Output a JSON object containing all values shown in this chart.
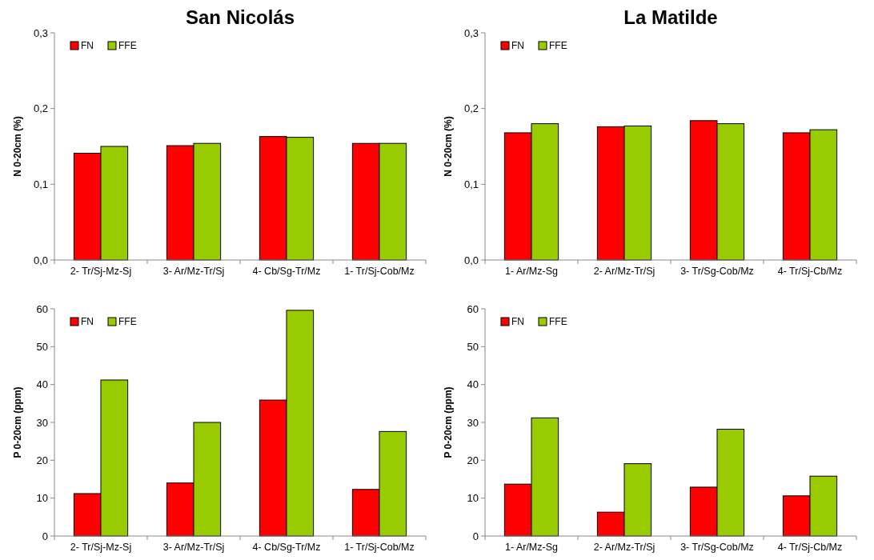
{
  "chart_data": [
    {
      "type": "bar",
      "title": "San Nicolás",
      "ylabel": "N 0-20cm (%)",
      "categories": [
        "2- Tr/Sj-Mz-Sj",
        "3- Ar/Mz-Tr/Sj",
        "4- Cb/Sg-Tr/Mz",
        "1- Tr/Sj-Cob/Mz"
      ],
      "series": [
        {
          "name": "FN",
          "color": "#ff0000",
          "values": [
            0.141,
            0.151,
            0.163,
            0.154
          ]
        },
        {
          "name": "FFE",
          "color": "#99cc00",
          "values": [
            0.15,
            0.154,
            0.162,
            0.154
          ]
        }
      ],
      "ylim": [
        0,
        0.3
      ],
      "yticks": [
        {
          "value": 0,
          "label": "0,0"
        },
        {
          "value": 0.1,
          "label": "0,1"
        },
        {
          "value": 0.2,
          "label": "0,2"
        },
        {
          "value": 0.3,
          "label": "0,3"
        }
      ],
      "grid": false,
      "legend": "top left"
    },
    {
      "type": "bar",
      "title": "La Matilde",
      "ylabel": "N 0-20cm (%)",
      "categories": [
        "1- Ar/Mz-Sg",
        "2- Ar/Mz-Tr/Sj",
        "3- Tr/Sg-Cob/Mz",
        "4- Tr/Sj-Cb/Mz"
      ],
      "series": [
        {
          "name": "FN",
          "color": "#ff0000",
          "values": [
            0.168,
            0.176,
            0.184,
            0.168
          ]
        },
        {
          "name": "FFE",
          "color": "#99cc00",
          "values": [
            0.18,
            0.177,
            0.18,
            0.172
          ]
        }
      ],
      "ylim": [
        0,
        0.3
      ],
      "yticks": [
        {
          "value": 0,
          "label": "0,0"
        },
        {
          "value": 0.1,
          "label": "0,1"
        },
        {
          "value": 0.2,
          "label": "0,2"
        },
        {
          "value": 0.3,
          "label": "0,3"
        }
      ],
      "grid": false,
      "legend": "top left"
    },
    {
      "type": "bar",
      "ylabel": "P 0-20cm (ppm)",
      "categories": [
        "2- Tr/Sj-Mz-Sj",
        "3- Ar/Mz-Tr/Sj",
        "4- Cb/Sg-Tr/Mz",
        "1- Tr/Sj-Cob/Mz"
      ],
      "series": [
        {
          "name": "FN",
          "color": "#ff0000",
          "values": [
            11.2,
            14.0,
            35.9,
            12.3
          ]
        },
        {
          "name": "FFE",
          "color": "#99cc00",
          "values": [
            41.2,
            30.0,
            59.6,
            27.6
          ]
        }
      ],
      "ylim": [
        0,
        60
      ],
      "yticks": [
        0,
        10,
        20,
        30,
        40,
        50,
        60
      ],
      "grid": false,
      "legend": "top left"
    },
    {
      "type": "bar",
      "ylabel": "P 0-20cm (ppm)",
      "categories": [
        "1- Ar/Mz-Sg",
        "2- Ar/Mz-Tr/Sj",
        "3- Tr/Sg-Cob/Mz",
        "4- Tr/Sj-Cb/Mz"
      ],
      "series": [
        {
          "name": "FN",
          "color": "#ff0000",
          "values": [
            13.7,
            6.3,
            12.9,
            10.6
          ]
        },
        {
          "name": "FFE",
          "color": "#99cc00",
          "values": [
            31.2,
            19.1,
            28.2,
            15.8
          ]
        }
      ],
      "ylim": [
        0,
        60
      ],
      "yticks": [
        0,
        10,
        20,
        30,
        40,
        50,
        60
      ],
      "grid": false,
      "legend": "top left"
    }
  ]
}
